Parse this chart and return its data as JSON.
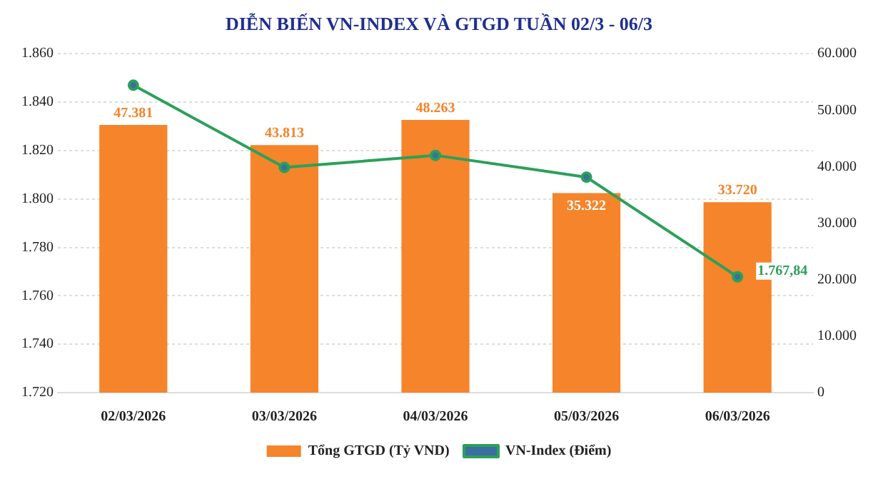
{
  "chart_data": {
    "type": "bar",
    "title": "DIỄN BIẾN VN-INDEX VÀ GTGD TUẦN 02/3 - 06/3",
    "categories": [
      "02/03/2026",
      "03/03/2026",
      "04/03/2026",
      "05/03/2026",
      "06/03/2026"
    ],
    "series": [
      {
        "name": "Tổng GTGD (Tỷ VND)",
        "axis": "y2",
        "color": "#f5842a",
        "values": [
          47381,
          43813,
          48263,
          35322,
          33720
        ],
        "value_labels": [
          "47.381",
          "43.813",
          "48.263",
          "35.322",
          "33.720"
        ]
      },
      {
        "name": "VN-Index (Điểm)",
        "type": "line",
        "axis": "y",
        "color": "#2ca05a",
        "values": [
          1847,
          1813,
          1818,
          1809,
          1767.84
        ],
        "value_labels": [
          null,
          null,
          null,
          null,
          "1.767,84"
        ],
        "marker": "circle"
      }
    ],
    "ylim": [
      1720,
      1860
    ],
    "yticks": [
      {
        "value": 1720,
        "label": "1.720"
      },
      {
        "value": 1740,
        "label": "1.740"
      },
      {
        "value": 1760,
        "label": "1.760"
      },
      {
        "value": 1780,
        "label": "1.780"
      },
      {
        "value": 1800,
        "label": "1.800"
      },
      {
        "value": 1820,
        "label": "1.820"
      },
      {
        "value": 1840,
        "label": "1.840"
      },
      {
        "value": 1860,
        "label": "1.860"
      }
    ],
    "y2lim": [
      0,
      60000
    ],
    "y2ticks": [
      0,
      {
        "value": 10000,
        "label": "10.000"
      },
      {
        "value": 20000,
        "label": "20.000"
      },
      {
        "value": 30000,
        "label": "30.000"
      },
      {
        "value": 40000,
        "label": "40.000"
      },
      {
        "value": 50000,
        "label": "50.000"
      },
      {
        "value": 60000,
        "label": "60.000"
      }
    ],
    "grid": "y",
    "legend": "bottom"
  }
}
